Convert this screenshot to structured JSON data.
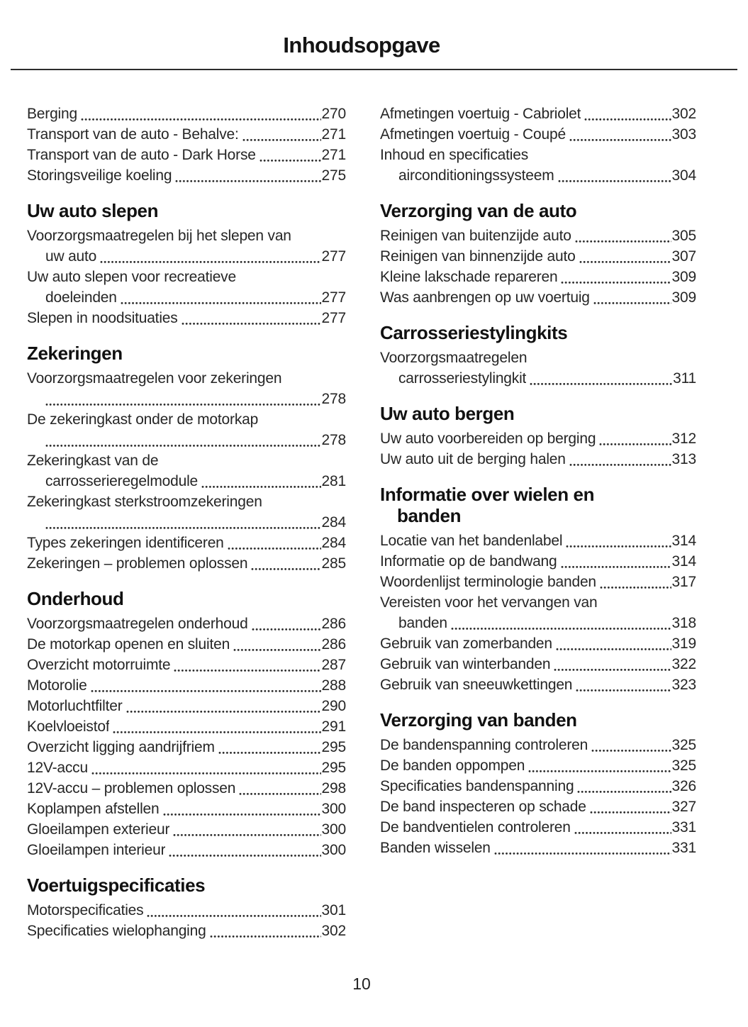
{
  "page": {
    "title": "Inhoudsopgave",
    "page_number": "10",
    "text_color": "#262626",
    "heading_color": "#111111",
    "background_color": "#ffffff"
  },
  "columns": [
    {
      "blocks": [
        {
          "heading": null,
          "entries": [
            {
              "label": "Berging",
              "page": "270"
            },
            {
              "label": "Transport van de auto - Behalve:",
              "page": "271"
            },
            {
              "label": "Transport van de auto - Dark Horse",
              "page": "271"
            },
            {
              "label": "Storingsveilige koeling",
              "page": "275"
            }
          ]
        },
        {
          "heading": "Uw auto slepen",
          "entries": [
            {
              "label": "Voorzorgsmaatregelen bij het slepen van",
              "cont": "uw auto",
              "page": "277"
            },
            {
              "label": "Uw auto slepen voor recreatieve",
              "cont": "doeleinden",
              "page": "277"
            },
            {
              "label": "Slepen in noodsituaties",
              "page": "277"
            }
          ]
        },
        {
          "heading": "Zekeringen",
          "entries": [
            {
              "label": "Voorzorgsmaatregelen voor zekeringen",
              "cont": "",
              "page": "278"
            },
            {
              "label": "De zekeringkast onder de motorkap",
              "cont": "",
              "page": "278"
            },
            {
              "label": "Zekeringkast van de",
              "cont": "carrosserieregelmodule",
              "page": "281"
            },
            {
              "label": "Zekeringkast sterkstroomzekeringen",
              "cont": "",
              "page": "284"
            },
            {
              "label": "Types zekeringen identificeren",
              "page": "284"
            },
            {
              "label": "Zekeringen – problemen oplossen",
              "page": "285"
            }
          ]
        },
        {
          "heading": "Onderhoud",
          "entries": [
            {
              "label": "Voorzorgsmaatregelen onderhoud",
              "page": "286"
            },
            {
              "label": "De motorkap openen en sluiten",
              "page": "286"
            },
            {
              "label": "Overzicht motorruimte",
              "page": "287"
            },
            {
              "label": "Motorolie",
              "page": "288"
            },
            {
              "label": "Motorluchtfilter",
              "page": "290"
            },
            {
              "label": "Koelvloeistof",
              "page": "291"
            },
            {
              "label": "Overzicht ligging aandrijfriem",
              "page": "295"
            },
            {
              "label": "12V-accu",
              "page": "295"
            },
            {
              "label": "12V-accu – problemen oplossen",
              "page": "298"
            },
            {
              "label": "Koplampen afstellen",
              "page": "300"
            },
            {
              "label": "Gloeilampen exterieur",
              "page": "300"
            },
            {
              "label": "Gloeilampen interieur",
              "page": "300"
            }
          ]
        },
        {
          "heading": "Voertuigspecificaties",
          "entries": [
            {
              "label": "Motorspecificaties",
              "page": "301"
            },
            {
              "label": "Specificaties wielophanging",
              "page": "302"
            }
          ]
        }
      ]
    },
    {
      "blocks": [
        {
          "heading": null,
          "entries": [
            {
              "label": "Afmetingen voertuig - Cabriolet",
              "page": "302"
            },
            {
              "label": "Afmetingen voertuig - Coupé",
              "page": "303"
            },
            {
              "label": "Inhoud en specificaties",
              "cont": "airconditioningssysteem",
              "page": "304"
            }
          ]
        },
        {
          "heading": "Verzorging van de auto",
          "entries": [
            {
              "label": "Reinigen van buitenzijde auto",
              "page": "305"
            },
            {
              "label": "Reinigen van binnenzijde auto",
              "page": "307"
            },
            {
              "label": "Kleine lakschade repareren",
              "page": "309"
            },
            {
              "label": "Was aanbrengen op uw voertuig",
              "page": "309"
            }
          ]
        },
        {
          "heading": "Carrosseriestylingkits",
          "entries": [
            {
              "label": "Voorzorgsmaatregelen",
              "cont": "carrosseriestylingkit",
              "page": "311"
            }
          ]
        },
        {
          "heading": "Uw auto bergen",
          "entries": [
            {
              "label": "Uw auto voorbereiden op berging",
              "page": "312"
            },
            {
              "label": "Uw auto uit de berging halen",
              "page": "313"
            }
          ]
        },
        {
          "heading": "Informatie over wielen en",
          "heading_line2": "banden",
          "entries": [
            {
              "label": "Locatie van het bandenlabel",
              "page": "314"
            },
            {
              "label": "Informatie op de bandwang",
              "page": "314"
            },
            {
              "label": "Woordenlijst terminologie banden",
              "page": "317"
            },
            {
              "label": "Vereisten voor het vervangen van",
              "cont": "banden",
              "page": "318"
            },
            {
              "label": "Gebruik van zomerbanden",
              "page": "319"
            },
            {
              "label": "Gebruik van winterbanden",
              "page": "322"
            },
            {
              "label": "Gebruik van sneeuwkettingen",
              "page": "323"
            }
          ]
        },
        {
          "heading": "Verzorging van banden",
          "entries": [
            {
              "label": "De bandenspanning controleren",
              "page": "325"
            },
            {
              "label": "De banden oppompen",
              "page": "325"
            },
            {
              "label": "Specificaties bandenspanning",
              "page": "326"
            },
            {
              "label": "De band inspecteren op schade",
              "page": "327"
            },
            {
              "label": "De bandventielen controleren",
              "page": "331"
            },
            {
              "label": "Banden wisselen",
              "page": "331"
            }
          ]
        }
      ]
    }
  ]
}
